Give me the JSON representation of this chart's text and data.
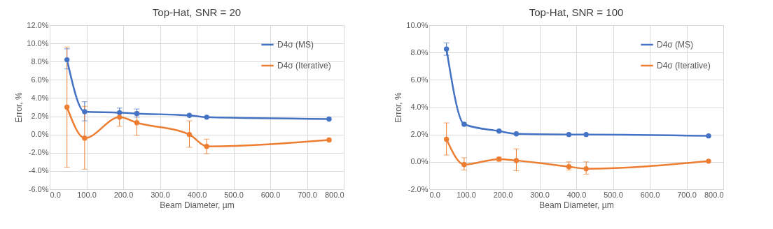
{
  "chart_data": [
    {
      "type": "line",
      "title": "Top-Hat, SNR = 20",
      "xlabel": "Beam Diameter, µm",
      "ylabel": "Error, %",
      "x": [
        47,
        95,
        190,
        237,
        380,
        427,
        760
      ],
      "series": [
        {
          "name": "D4σ (MS)",
          "color": "#4472c4",
          "values": [
            8.2,
            2.5,
            2.4,
            2.3,
            2.1,
            1.9,
            1.7
          ],
          "errors": [
            [
              7.2,
              9.4
            ],
            [
              1.5,
              3.6
            ],
            [
              1.9,
              2.9
            ],
            [
              1.9,
              2.8
            ],
            null,
            null,
            null
          ]
        },
        {
          "name": "D4σ (Iterative)",
          "color": "#ed7d31",
          "values": [
            3.0,
            -0.4,
            1.9,
            1.3,
            0.0,
            -1.3,
            -0.6
          ],
          "errors": [
            [
              -3.6,
              9.6
            ],
            [
              -3.8,
              3.1
            ],
            [
              0.9,
              2.5
            ],
            [
              -0.1,
              2.5
            ],
            [
              -1.4,
              1.5
            ],
            [
              -2.1,
              -0.5
            ],
            null
          ]
        }
      ],
      "xlim": [
        0,
        800
      ],
      "xticks": [
        {
          "value": 0,
          "label": "0.0"
        },
        {
          "value": 100,
          "label": "100.0"
        },
        {
          "value": 200,
          "label": "200.0"
        },
        {
          "value": 300,
          "label": "300.0"
        },
        {
          "value": 400,
          "label": "400.0"
        },
        {
          "value": 500,
          "label": "500.0"
        },
        {
          "value": 600,
          "label": "600.0"
        },
        {
          "value": 700,
          "label": "700.0"
        },
        {
          "value": 800,
          "label": "800.0"
        }
      ],
      "ylim": [
        -6,
        12
      ],
      "yticks": [
        {
          "value": -6,
          "label": "-6.0%"
        },
        {
          "value": -4,
          "label": "-4.0%"
        },
        {
          "value": -2,
          "label": "-2.0%"
        },
        {
          "value": 0,
          "label": "0.0%"
        },
        {
          "value": 2,
          "label": "2.0%"
        },
        {
          "value": 4,
          "label": "4.0%"
        },
        {
          "value": 6,
          "label": "6.0%"
        },
        {
          "value": 8,
          "label": "8.0%"
        },
        {
          "value": 10,
          "label": "10.0%"
        },
        {
          "value": 12,
          "label": "12.0%"
        }
      ],
      "grid": true,
      "legend": "top right",
      "marker": "circle",
      "line_style": "solid"
    },
    {
      "type": "line",
      "title": "Top-Hat, SNR = 100",
      "xlabel": "Beam Diameter, µm",
      "ylabel": "Error, %",
      "x": [
        47,
        95,
        190,
        237,
        380,
        427,
        760
      ],
      "series": [
        {
          "name": "D4σ (MS)",
          "color": "#4472c4",
          "values": [
            8.25,
            2.75,
            2.25,
            2.05,
            2.0,
            2.0,
            1.9
          ],
          "errors": [
            [
              7.8,
              8.7
            ],
            null,
            null,
            null,
            null,
            null,
            null
          ]
        },
        {
          "name": "D4σ (Iterative)",
          "color": "#ed7d31",
          "values": [
            1.65,
            -0.2,
            0.2,
            0.1,
            -0.35,
            -0.5,
            0.05
          ],
          "errors": [
            [
              0.5,
              2.85
            ],
            [
              -0.6,
              0.3
            ],
            [
              0.05,
              0.35
            ],
            [
              -0.65,
              0.95
            ],
            [
              -0.6,
              0.0
            ],
            [
              -0.9,
              0.0
            ],
            null
          ]
        }
      ],
      "xlim": [
        0,
        800
      ],
      "xticks": [
        {
          "value": 0,
          "label": "0.0"
        },
        {
          "value": 100,
          "label": "100.0"
        },
        {
          "value": 200,
          "label": "200.0"
        },
        {
          "value": 300,
          "label": "300.0"
        },
        {
          "value": 400,
          "label": "400.0"
        },
        {
          "value": 500,
          "label": "500.0"
        },
        {
          "value": 600,
          "label": "600.0"
        },
        {
          "value": 700,
          "label": "700.0"
        },
        {
          "value": 800,
          "label": "800.0"
        }
      ],
      "ylim": [
        -2,
        10
      ],
      "yticks": [
        {
          "value": -2,
          "label": "-2.0%"
        },
        {
          "value": 0,
          "label": "0.0%"
        },
        {
          "value": 2,
          "label": "2.0%"
        },
        {
          "value": 4,
          "label": "4.0%"
        },
        {
          "value": 6,
          "label": "6.0%"
        },
        {
          "value": 8,
          "label": "8.0%"
        },
        {
          "value": 10,
          "label": "10.0%"
        }
      ],
      "grid": true,
      "legend": "top right",
      "marker": "circle",
      "line_style": "solid"
    }
  ]
}
